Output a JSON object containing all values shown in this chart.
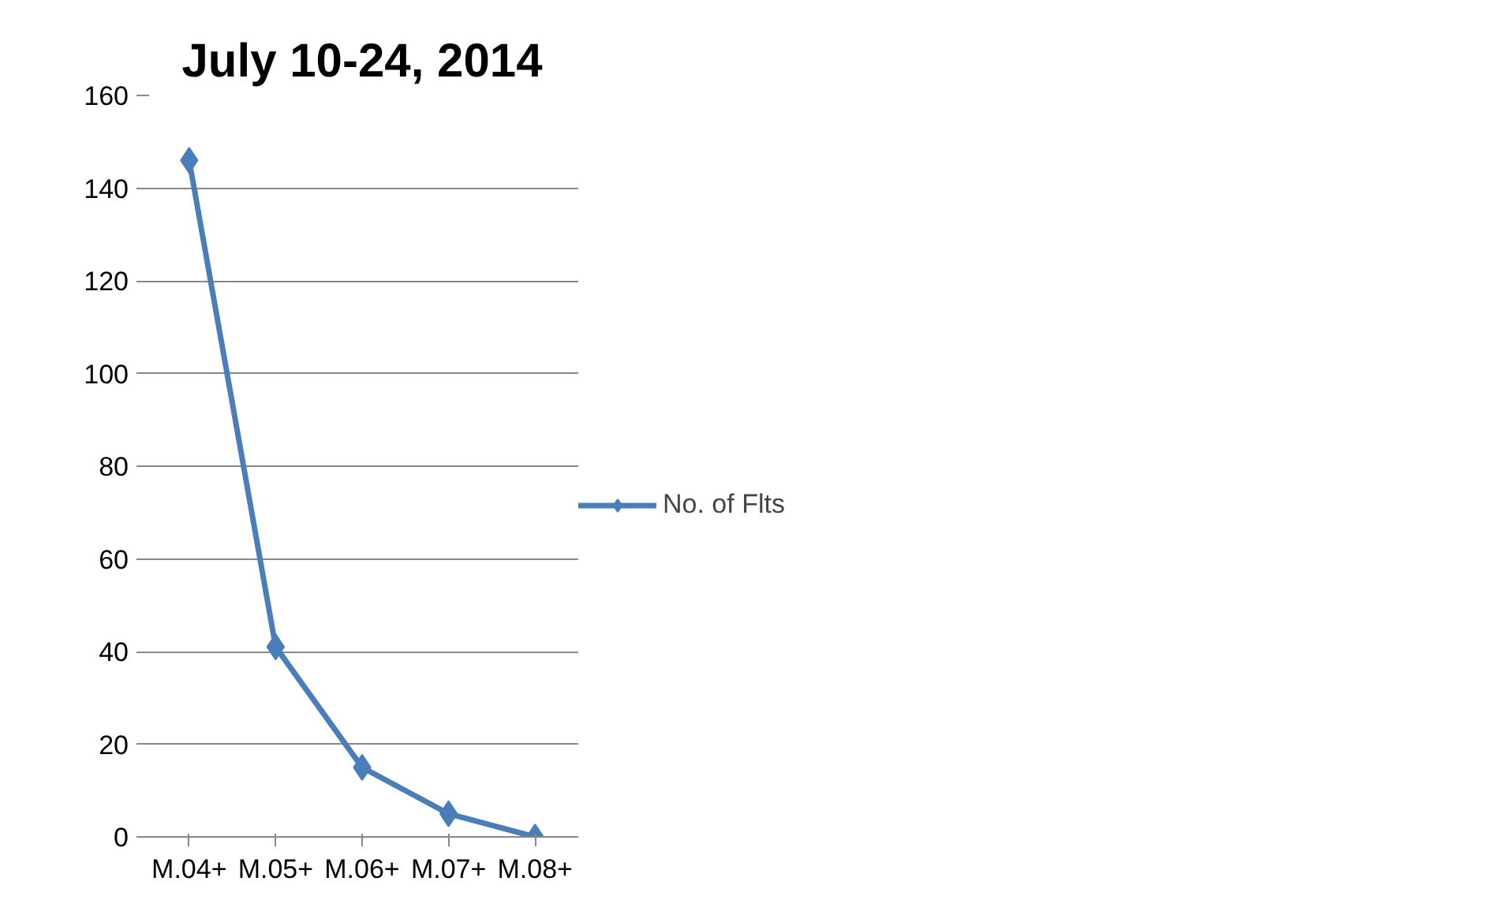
{
  "chart_data": {
    "type": "line",
    "title": "July 10-24, 2014",
    "categories": [
      "M.04+",
      "M.05+",
      "M.06+",
      "M.07+",
      "M.08+"
    ],
    "series": [
      {
        "name": "No. of Flts",
        "color": "#4a7ebb",
        "values": [
          146,
          41,
          15,
          5,
          0
        ]
      }
    ],
    "ylim": [
      0,
      160
    ],
    "yticks": [
      0,
      20,
      40,
      60,
      80,
      100,
      120,
      140,
      160
    ],
    "grid": "y",
    "legend": "right",
    "marker": "diamond",
    "line_style": "solid"
  }
}
